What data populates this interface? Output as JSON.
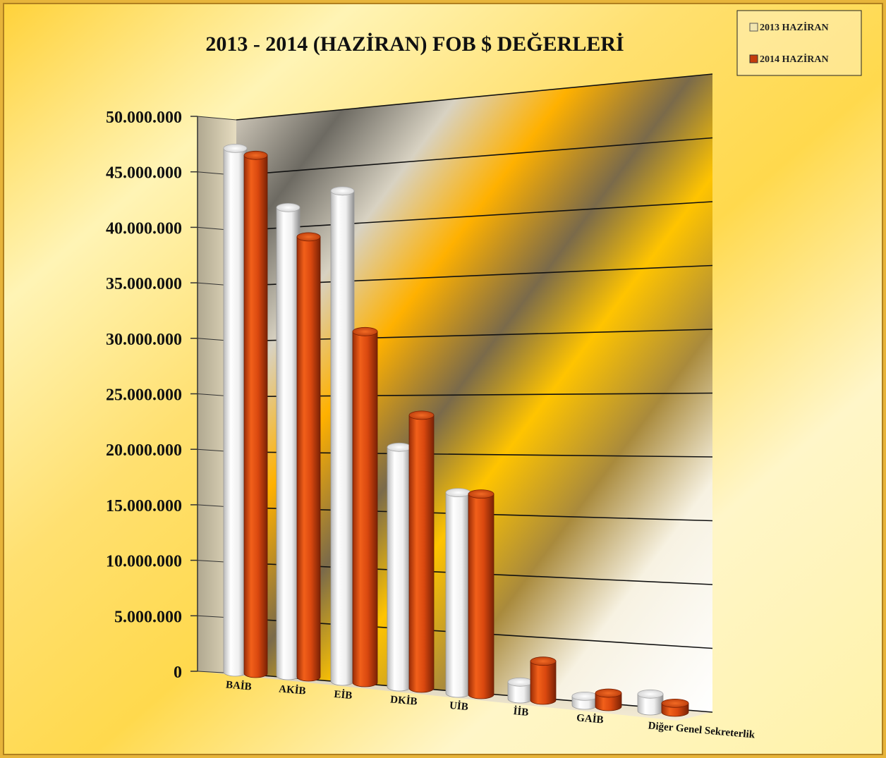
{
  "chart_data": {
    "type": "bar",
    "title": "2013 - 2014 (HAZİRAN)  FOB $ DEĞERLERİ",
    "xlabel": "",
    "ylabel": "",
    "categories": [
      "BAİB",
      "AKİB",
      "EİB",
      "DKİB",
      "UİB",
      "İİB",
      "GAİB",
      "Diğer Genel Sekreterlik"
    ],
    "series": [
      {
        "name": "2013 HAZİRAN",
        "color": "#f2f2f2",
        "values": [
          47000000,
          42000000,
          44000000,
          21500000,
          18000000,
          1500000,
          800000,
          1500000
        ]
      },
      {
        "name": "2014 HAZİRAN",
        "color": "#d9480f",
        "values": [
          46500000,
          39500000,
          31500000,
          24500000,
          18000000,
          3500000,
          1200000,
          800000
        ]
      }
    ],
    "ylim": [
      0,
      50000000
    ],
    "y_ticks": [
      "0",
      "5.000.000",
      "10.000.000",
      "15.000.000",
      "20.000.000",
      "25.000.000",
      "30.000.000",
      "35.000.000",
      "40.000.000",
      "45.000.000",
      "50.000.000"
    ],
    "grid": true,
    "legend_position": "top-right",
    "style": "3d-cylinder"
  }
}
